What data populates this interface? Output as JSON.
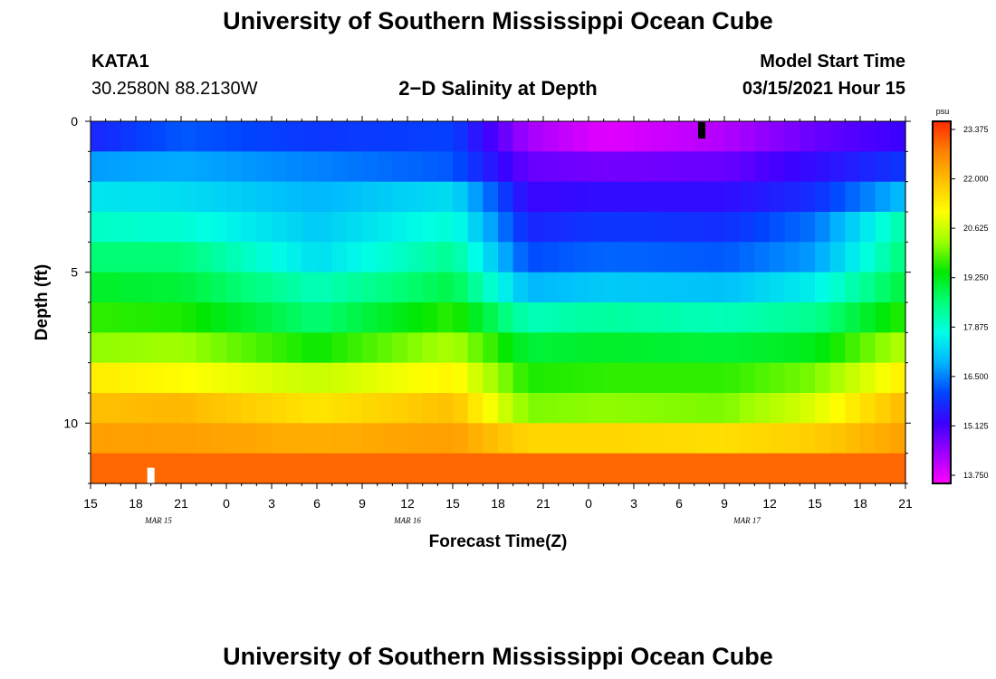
{
  "page": {
    "title": "University of Southern Mississippi Ocean Cube",
    "footer_title": "University of Southern Mississippi Ocean Cube",
    "station_id": "KATA1",
    "station_coords": "30.2580N 88.2130W",
    "chart_heading": "2−D Salinity at Depth",
    "model_start_label": "Model Start Time",
    "model_start_value": "03/15/2021 Hour 15"
  },
  "chart_data": {
    "type": "heatmap",
    "title": "2−D Salinity at Depth",
    "xlabel": "Forecast Time(Z)",
    "ylabel": "Depth (ft)",
    "x_range_hours": [
      0,
      54
    ],
    "x_tick_labels": [
      "15",
      "18",
      "21",
      "0",
      "3",
      "6",
      "9",
      "12",
      "15",
      "18",
      "21",
      "0",
      "3",
      "6",
      "9",
      "12",
      "15",
      "18",
      "21"
    ],
    "date_labels": [
      {
        "label": "MAR 15",
        "hour": 4.5
      },
      {
        "label": "MAR 16",
        "hour": 21
      },
      {
        "label": "MAR 17",
        "hour": 43.5
      }
    ],
    "y_range_ft": [
      0,
      12
    ],
    "y_tick_labels": [
      {
        "label": "0",
        "value": 0
      },
      {
        "label": "5",
        "value": 5
      },
      {
        "label": "10",
        "value": 10
      }
    ],
    "colorbar": {
      "units": "psu",
      "min": 13.75,
      "max": 23.375,
      "tick_labels": [
        "23.375",
        "22.000",
        "20.625",
        "19.250",
        "17.875",
        "16.500",
        "15.125",
        "13.750"
      ],
      "colors": [
        "#ff00ff",
        "#a000ff",
        "#3c00ff",
        "#0044ff",
        "#00b4ff",
        "#00ffe6",
        "#00ff7a",
        "#00e800",
        "#9cff00",
        "#ffff00",
        "#ffc200",
        "#ff8000",
        "#ff2a00"
      ]
    },
    "depth_layers_ft": [
      0.5,
      1.5,
      2.5,
      3.5,
      4.5,
      5.5,
      6.5,
      7.5,
      8.5,
      9.5,
      10.5,
      11.5
    ],
    "profile_time_hours": [
      0,
      6,
      15,
      24,
      29,
      34,
      42,
      48,
      54
    ],
    "salinity_profiles_psu": [
      [
        15.8,
        16.8,
        17.5,
        18.0,
        18.6,
        19.1,
        19.6,
        20.1,
        21.2,
        21.8,
        22.2,
        22.8
      ],
      [
        16.3,
        16.9,
        17.4,
        17.9,
        18.6,
        19.0,
        19.5,
        20.2,
        21.0,
        21.9,
        22.2,
        22.8
      ],
      [
        16.0,
        16.6,
        17.0,
        17.2,
        17.4,
        18.1,
        18.6,
        19.4,
        20.5,
        21.3,
        22.0,
        22.8
      ],
      [
        16.1,
        16.3,
        17.4,
        17.9,
        18.4,
        18.9,
        19.6,
        20.3,
        21.1,
        21.8,
        22.2,
        22.8
      ],
      [
        14.5,
        15.0,
        15.4,
        15.8,
        16.2,
        17.0,
        18.1,
        19.0,
        19.5,
        20.0,
        21.5,
        22.8
      ],
      [
        14.0,
        14.9,
        15.5,
        16.0,
        16.4,
        17.2,
        18.3,
        19.1,
        19.6,
        20.1,
        21.5,
        22.8
      ],
      [
        14.4,
        15.0,
        15.5,
        15.9,
        16.3,
        17.1,
        18.1,
        19.0,
        19.6,
        20.0,
        21.4,
        22.8
      ],
      [
        15.0,
        15.5,
        15.9,
        16.5,
        16.8,
        17.6,
        18.4,
        19.2,
        20.0,
        20.7,
        21.6,
        22.8
      ],
      [
        15.4,
        16.0,
        17.1,
        18.3,
        18.6,
        19.0,
        19.6,
        20.4,
        21.2,
        21.9,
        22.2,
        22.8
      ]
    ],
    "markers": [
      {
        "color": "#000000",
        "hour": 40.5,
        "depth_ft": 0.3
      },
      {
        "color": "#ffffff",
        "hour": 4.0,
        "depth_ft": 11.75
      }
    ]
  }
}
